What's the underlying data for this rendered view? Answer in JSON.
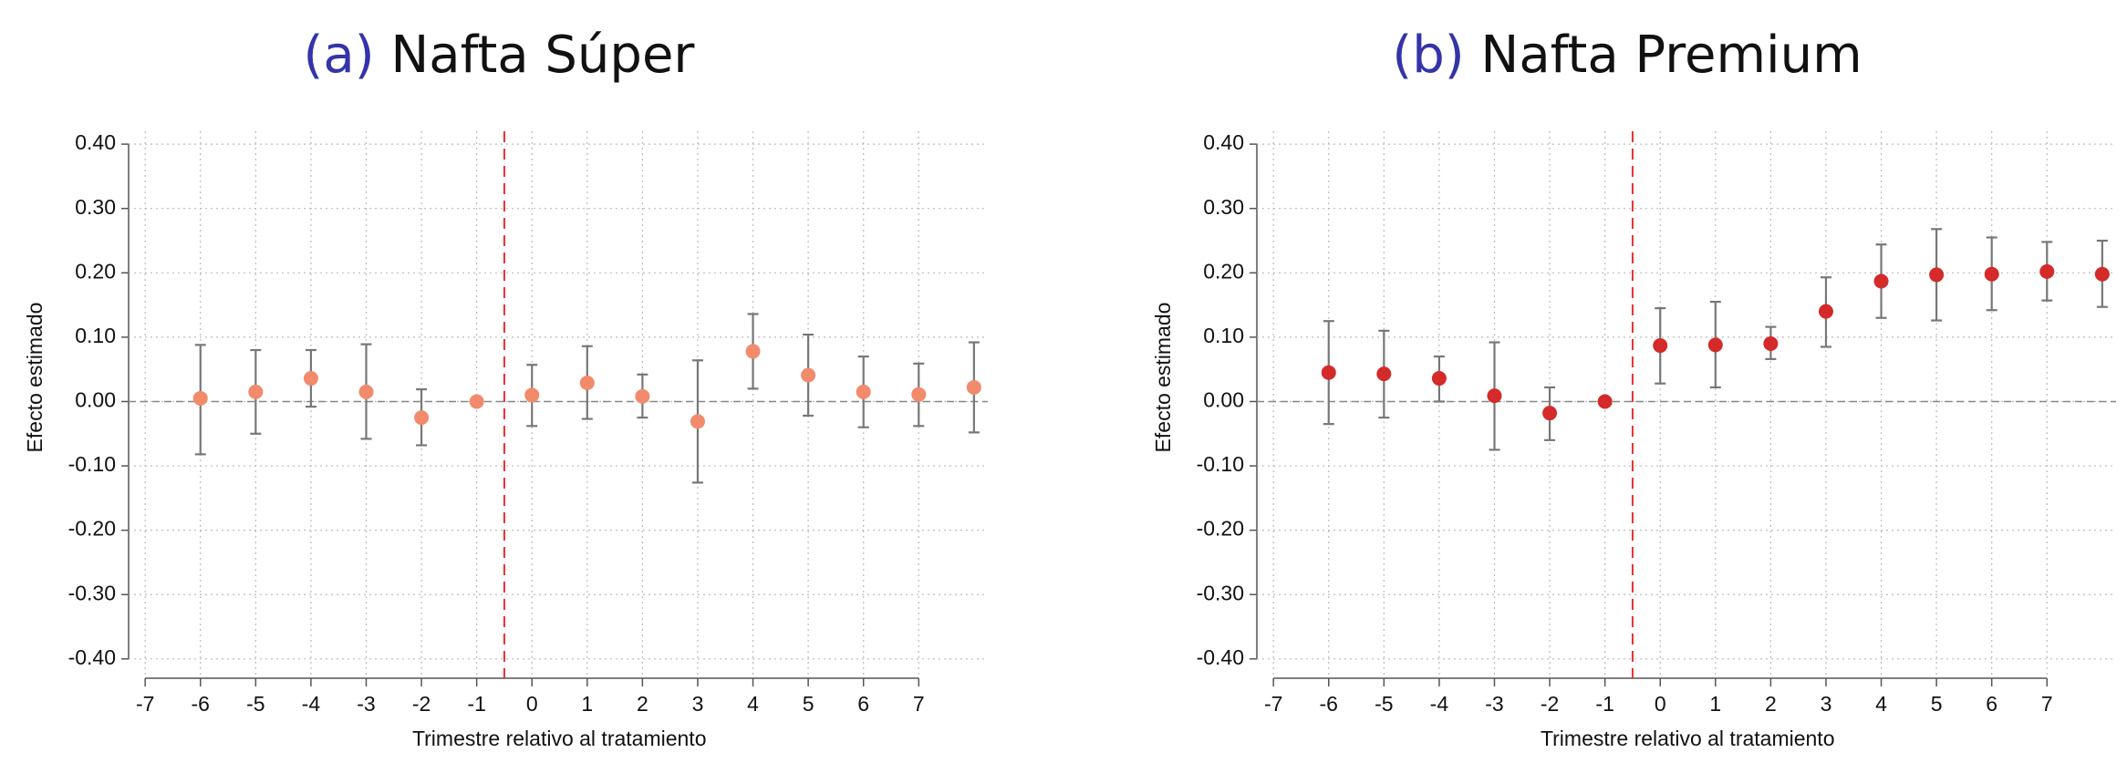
{
  "chart_data": [
    {
      "type": "errorbar",
      "label": "(a)",
      "title": "Nafta Súper",
      "xlabel": "Trimestre relativo al tratamiento",
      "ylabel": "Efecto estimado",
      "x": [
        -6,
        -5,
        -4,
        -3,
        -2,
        -1,
        0,
        1,
        2,
        3,
        4,
        5,
        6,
        7,
        8
      ],
      "values": [
        0.005,
        0.015,
        0.036,
        0.015,
        -0.025,
        0,
        0.01,
        0.029,
        0.008,
        -0.031,
        0.078,
        0.041,
        0.015,
        0.011,
        0.022
      ],
      "lower": [
        -0.082,
        -0.05,
        -0.008,
        -0.058,
        -0.068,
        0,
        -0.038,
        -0.027,
        -0.025,
        -0.126,
        0.02,
        -0.022,
        -0.04,
        -0.038,
        -0.048
      ],
      "upper": [
        0.088,
        0.08,
        0.08,
        0.089,
        0.019,
        0,
        0.057,
        0.086,
        0.042,
        0.064,
        0.136,
        0.104,
        0.07,
        0.059,
        0.092
      ],
      "color": "#f28a6c",
      "error_color": "#777777",
      "label_color": "#3333aa",
      "vline": -0.5,
      "vline_color": "#e8302f",
      "hline": 0,
      "xlim": [
        -7.3,
        8.25
      ],
      "ylim": [
        -0.43,
        0.42
      ],
      "xticks": [
        -7,
        -6,
        -5,
        -4,
        -3,
        -2,
        -1,
        0,
        1,
        2,
        3,
        4,
        5,
        6,
        7
      ],
      "yticks": [
        {
          "value": -0.4,
          "label": "-0.40"
        },
        {
          "value": -0.3,
          "label": "-0.30"
        },
        {
          "value": -0.2,
          "label": "-0.20"
        },
        {
          "value": -0.1,
          "label": "-0.10"
        },
        {
          "value": 0,
          "label": "0.00"
        },
        {
          "value": 0.1,
          "label": "0.10"
        },
        {
          "value": 0.2,
          "label": "0.20"
        },
        {
          "value": 0.3,
          "label": "0.30"
        },
        {
          "value": 0.4,
          "label": "0.40"
        }
      ],
      "grid": true
    },
    {
      "type": "errorbar",
      "label": "(b)",
      "title": "Nafta Premium",
      "xlabel": "Trimestre relativo al tratamiento",
      "ylabel": "Efecto estimado",
      "x": [
        -6,
        -5,
        -4,
        -3,
        -2,
        -1,
        0,
        1,
        2,
        3,
        4,
        5,
        6,
        7,
        8
      ],
      "values": [
        0.045,
        0.043,
        0.036,
        0.009,
        -0.018,
        0,
        0.087,
        0.088,
        0.09,
        0.14,
        0.187,
        0.197,
        0.198,
        0.202,
        0.198
      ],
      "lower": [
        -0.035,
        -0.025,
        0.0,
        -0.075,
        -0.06,
        0,
        0.028,
        0.022,
        0.066,
        0.085,
        0.13,
        0.126,
        0.142,
        0.157,
        0.147
      ],
      "upper": [
        0.125,
        0.11,
        0.07,
        0.092,
        0.022,
        0,
        0.145,
        0.155,
        0.116,
        0.193,
        0.244,
        0.268,
        0.255,
        0.248,
        0.25
      ],
      "color": "#d42a2a",
      "error_color": "#777777",
      "label_color": "#3333aa",
      "vline": -0.5,
      "vline_color": "#e8302f",
      "hline": 0,
      "xlim": [
        -7.3,
        8.25
      ],
      "ylim": [
        -0.43,
        0.42
      ],
      "xticks": [
        -7,
        -6,
        -5,
        -4,
        -3,
        -2,
        -1,
        0,
        1,
        2,
        3,
        4,
        5,
        6,
        7
      ],
      "yticks": [
        {
          "value": -0.4,
          "label": "-0.40"
        },
        {
          "value": -0.3,
          "label": "-0.30"
        },
        {
          "value": -0.2,
          "label": "-0.20"
        },
        {
          "value": -0.1,
          "label": "-0.10"
        },
        {
          "value": 0,
          "label": "0.00"
        },
        {
          "value": 0.1,
          "label": "0.10"
        },
        {
          "value": 0.2,
          "label": "0.20"
        },
        {
          "value": 0.3,
          "label": "0.30"
        },
        {
          "value": 0.4,
          "label": "0.40"
        }
      ],
      "grid": true
    }
  ]
}
